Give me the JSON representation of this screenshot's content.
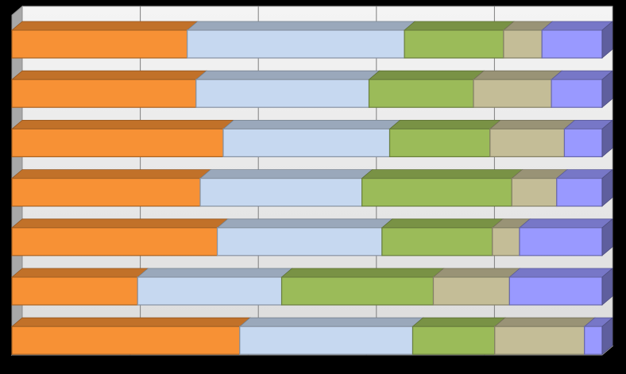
{
  "chart_data": {
    "type": "bar",
    "orientation": "horizontal",
    "stacking": "percent",
    "style": "3d",
    "grid": true,
    "legend": "none",
    "xlim": [
      0,
      100
    ],
    "series": [
      {
        "color": "#F79135",
        "values": [
          29.7,
          31.2,
          35.8,
          31.9,
          34.8,
          21.3,
          38.6
        ]
      },
      {
        "color": "#C6D8F0",
        "values": [
          36.8,
          29.3,
          28.2,
          27.4,
          27.9,
          24.4,
          29.3
        ]
      },
      {
        "color": "#9BBB59",
        "values": [
          16.8,
          17.7,
          17.0,
          25.4,
          18.7,
          25.7,
          13.9
        ]
      },
      {
        "color": "#C4BD97",
        "values": [
          6.5,
          13.2,
          12.6,
          7.6,
          4.6,
          12.9,
          15.2
        ]
      },
      {
        "color": "#9999FF",
        "values": [
          10.2,
          8.6,
          6.4,
          7.7,
          14.0,
          15.7,
          3.0
        ]
      }
    ]
  }
}
